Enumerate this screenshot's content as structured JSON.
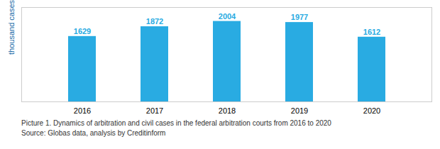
{
  "chart_data": {
    "type": "bar",
    "categories": [
      "2016",
      "2017",
      "2018",
      "2019",
      "2020"
    ],
    "values": [
      1629,
      1872,
      2004,
      1977,
      1612
    ],
    "color": "#29ABE2",
    "ylabel": "thousand cases",
    "ylim": [
      0,
      2350
    ],
    "yticks": [],
    "tick_labels": "x",
    "data_labels": true,
    "grid": false,
    "caption": [
      "Picture 1. Dynamics of arbitration and civil cases in the federal arbitration courts from 2016 to 2020",
      "Source: Globas data, analysis by Creditinform"
    ]
  }
}
